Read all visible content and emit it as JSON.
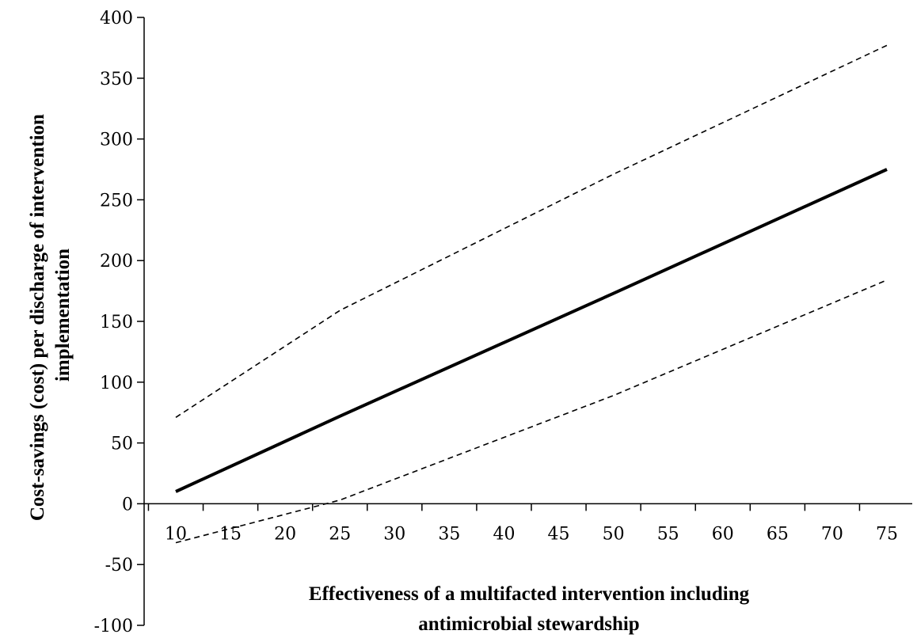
{
  "chart_data": {
    "type": "line",
    "title": "",
    "xlabel_lines": [
      "Effectiveness of a multifacted intervention including",
      "antimicrobial stewardship"
    ],
    "ylabel_lines": [
      "Cost-savings (cost) per discharge of intervention",
      "implementation"
    ],
    "xlim": [
      10,
      75
    ],
    "ylim": [
      -100,
      400
    ],
    "x_ticks": [
      10,
      15,
      20,
      25,
      30,
      35,
      40,
      45,
      50,
      55,
      60,
      65,
      70,
      75
    ],
    "y_ticks": [
      -100,
      -50,
      0,
      50,
      100,
      150,
      200,
      250,
      300,
      350,
      400
    ],
    "grid": false,
    "legend": "none",
    "series": [
      {
        "style": "solid",
        "color": "#000000",
        "points": [
          [
            10,
            10
          ],
          [
            25,
            72
          ],
          [
            50,
            173
          ],
          [
            75,
            275
          ]
        ]
      },
      {
        "style": "dashed",
        "color": "#000000",
        "points": [
          [
            10,
            71
          ],
          [
            25,
            159
          ],
          [
            50,
            271
          ],
          [
            75,
            377
          ]
        ]
      },
      {
        "style": "dashed",
        "color": "#000000",
        "points": [
          [
            10,
            -32
          ],
          [
            25,
            3
          ],
          [
            50,
            89
          ],
          [
            75,
            184
          ]
        ]
      }
    ]
  }
}
